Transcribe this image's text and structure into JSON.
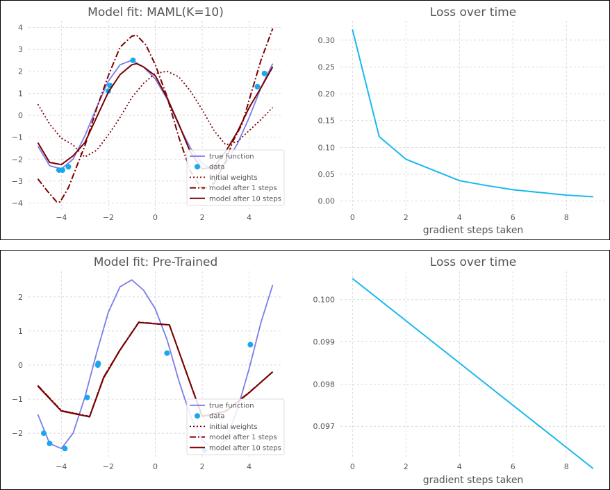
{
  "figures": [
    {
      "left_title": "Model fit: MAML(K=10)",
      "right_title": "Loss over time",
      "right_xlabel": "gradient steps taken"
    },
    {
      "left_title": "Model fit: Pre-Trained",
      "right_title": "Loss over time",
      "right_xlabel": "gradient steps taken"
    }
  ],
  "colors": {
    "true_function": "#7b7bea",
    "data": "#1aa7ec",
    "model": "#7a0000",
    "loss": "#18b8f0"
  },
  "chart_data": [
    {
      "type": "line",
      "title": "Model fit: MAML(K=10)",
      "xlabel": "",
      "ylabel": "",
      "xlim": [
        -5.4,
        5.4
      ],
      "ylim": [
        -4.3,
        4.3
      ],
      "xticks": [
        -4,
        -2,
        0,
        2,
        4
      ],
      "yticks": [
        -4,
        -3,
        -2,
        -1,
        0,
        1,
        2,
        3,
        4
      ],
      "grid": true,
      "legend_position": "lower-right",
      "series": [
        {
          "name": "true function",
          "style": "solid-blue",
          "x": [
            -5.0,
            -4.5,
            -4.0,
            -3.5,
            -3.0,
            -2.5,
            -2.0,
            -1.5,
            -1.0,
            -0.5,
            0.0,
            0.5,
            1.0,
            1.5,
            2.0,
            2.5,
            3.0,
            3.5,
            4.0,
            4.5,
            5.0
          ],
          "y": [
            -1.4,
            -2.3,
            -2.45,
            -2.0,
            -0.95,
            0.35,
            1.55,
            2.3,
            2.5,
            2.2,
            1.65,
            0.75,
            -0.45,
            -1.5,
            -2.2,
            -2.5,
            -2.2,
            -1.3,
            -0.1,
            1.25,
            2.35
          ]
        },
        {
          "name": "data",
          "style": "points",
          "x": [
            -4.1,
            -3.95,
            -3.7,
            -2.0,
            -1.93,
            -0.95,
            4.35,
            4.65
          ],
          "y": [
            -2.5,
            -2.5,
            -2.35,
            1.1,
            1.35,
            2.5,
            1.3,
            1.9
          ]
        },
        {
          "name": "initial weights",
          "style": "dotted",
          "x": [
            -5.0,
            -4.5,
            -4.0,
            -3.5,
            -3.2,
            -3.0,
            -2.5,
            -2.0,
            -1.5,
            -1.0,
            -0.5,
            0.0,
            0.5,
            1.0,
            1.5,
            2.0,
            2.5,
            3.0,
            3.5,
            4.0,
            4.5,
            5.0
          ],
          "y": [
            0.5,
            -0.4,
            -1.05,
            -1.35,
            -1.7,
            -1.9,
            -1.6,
            -0.9,
            -0.1,
            0.8,
            1.45,
            1.9,
            2.0,
            1.75,
            1.1,
            0.25,
            -0.7,
            -1.35,
            -1.2,
            -0.7,
            -0.2,
            0.35
          ]
        },
        {
          "name": "model after 1 steps",
          "style": "dashdot",
          "x": [
            -5.0,
            -4.6,
            -4.2,
            -4.05,
            -3.7,
            -3.3,
            -3.0,
            -2.5,
            -2.0,
            -1.5,
            -1.0,
            -0.8,
            -0.4,
            0.0,
            0.5,
            1.0,
            1.5,
            2.0,
            2.5,
            3.0,
            3.3,
            3.7,
            4.0,
            4.5,
            5.0
          ],
          "y": [
            -2.9,
            -3.45,
            -3.95,
            -3.95,
            -3.3,
            -2.2,
            -1.4,
            0.3,
            1.8,
            3.1,
            3.6,
            3.65,
            3.2,
            2.3,
            0.85,
            -1.0,
            -2.55,
            -3.4,
            -3.1,
            -2.1,
            -1.2,
            -0.4,
            0.7,
            2.5,
            3.95
          ]
        },
        {
          "name": "model after 10 steps",
          "style": "solid-red",
          "x": [
            -5.0,
            -4.5,
            -4.0,
            -3.5,
            -3.0,
            -2.5,
            -2.0,
            -1.5,
            -1.0,
            -0.8,
            -0.5,
            0.0,
            0.5,
            1.0,
            1.5,
            2.0,
            2.5,
            3.0,
            3.5,
            4.0,
            4.5,
            5.0
          ],
          "y": [
            -1.25,
            -2.15,
            -2.25,
            -1.85,
            -1.25,
            -0.1,
            1.05,
            1.85,
            2.3,
            2.35,
            2.2,
            1.8,
            0.8,
            -0.4,
            -1.7,
            -2.45,
            -2.35,
            -1.65,
            -0.75,
            0.35,
            1.25,
            2.2
          ]
        }
      ]
    },
    {
      "type": "line",
      "title": "Loss over time",
      "xlabel": "gradient steps taken",
      "ylabel": "",
      "xlim": [
        -0.45,
        9.45
      ],
      "ylim": [
        -0.016,
        0.336
      ],
      "xticks": [
        0,
        2,
        4,
        6,
        8
      ],
      "yticks": [
        0.0,
        0.05,
        0.1,
        0.15,
        0.2,
        0.25,
        0.3
      ],
      "ytick_labels": [
        "0.00",
        "0.05",
        "0.10",
        "0.15",
        "0.20",
        "0.25",
        "0.30"
      ],
      "grid": true,
      "series": [
        {
          "x": [
            0,
            1,
            2,
            3,
            4,
            5,
            6,
            7,
            8,
            9
          ],
          "y": [
            0.32,
            0.12,
            0.078,
            0.058,
            0.038,
            0.029,
            0.021,
            0.016,
            0.011,
            0.008
          ]
        }
      ]
    },
    {
      "type": "line",
      "title": "Model fit: Pre-Trained",
      "xlabel": "",
      "ylabel": "",
      "xlim": [
        -5.4,
        5.4
      ],
      "ylim": [
        -2.75,
        2.75
      ],
      "xticks": [
        -4,
        -2,
        0,
        2,
        4
      ],
      "yticks": [
        -2,
        -1,
        0,
        1,
        2
      ],
      "grid": true,
      "legend_position": "lower-right",
      "series": [
        {
          "name": "true function",
          "style": "solid-blue",
          "x": [
            -5.0,
            -4.5,
            -4.0,
            -3.5,
            -3.0,
            -2.5,
            -2.0,
            -1.5,
            -1.0,
            -0.5,
            0.0,
            0.5,
            1.0,
            1.5,
            2.0,
            2.5,
            3.0,
            3.5,
            4.0,
            4.5,
            5.0
          ],
          "y": [
            -1.45,
            -2.3,
            -2.45,
            -2.0,
            -0.95,
            0.35,
            1.55,
            2.3,
            2.5,
            2.2,
            1.65,
            0.75,
            -0.45,
            -1.5,
            -2.2,
            -2.5,
            -2.2,
            -1.3,
            -0.1,
            1.25,
            2.35
          ]
        },
        {
          "name": "data",
          "style": "points",
          "x": [
            -4.75,
            -4.5,
            -3.85,
            -2.9,
            -2.45,
            -2.43,
            0.5,
            2.1,
            4.05
          ],
          "y": [
            -2.0,
            -2.3,
            -2.45,
            -0.95,
            0.0,
            0.05,
            0.35,
            -2.5,
            0.6
          ]
        },
        {
          "name": "initial weights",
          "style": "dotted",
          "x": [
            -5.0,
            -4.0,
            -2.8,
            -2.2,
            -1.5,
            -0.7,
            0.6,
            1.5,
            2.0,
            3.0,
            4.0,
            5.0
          ],
          "y": [
            -0.6,
            -1.33,
            -1.5,
            -0.35,
            0.45,
            1.25,
            1.18,
            -0.55,
            -1.5,
            -1.35,
            -0.8,
            -0.2
          ]
        },
        {
          "name": "model after 1 steps",
          "style": "dashdot",
          "x": [
            -5.0,
            -4.0,
            -2.8,
            -2.2,
            -1.5,
            -0.7,
            0.6,
            1.5,
            2.0,
            3.0,
            4.0,
            5.0
          ],
          "y": [
            -0.6,
            -1.34,
            -1.51,
            -0.36,
            0.45,
            1.26,
            1.18,
            -0.55,
            -1.5,
            -1.35,
            -0.8,
            -0.2
          ]
        },
        {
          "name": "model after 10 steps",
          "style": "solid-red",
          "x": [
            -5.0,
            -4.0,
            -2.8,
            -2.2,
            -1.5,
            -0.7,
            0.6,
            1.5,
            2.0,
            3.0,
            4.0,
            5.0
          ],
          "y": [
            -0.62,
            -1.35,
            -1.52,
            -0.38,
            0.44,
            1.25,
            1.18,
            -0.56,
            -1.51,
            -1.36,
            -0.81,
            -0.2
          ]
        }
      ]
    },
    {
      "type": "line",
      "title": "Loss over time",
      "xlabel": "gradient steps taken",
      "ylabel": "",
      "xlim": [
        -0.45,
        9.45
      ],
      "ylim": [
        0.09623,
        0.10067
      ],
      "xticks": [
        0,
        2,
        4,
        6,
        8
      ],
      "yticks": [
        0.097,
        0.098,
        0.099,
        0.1
      ],
      "ytick_labels": [
        "0.097",
        "0.098",
        "0.099",
        "0.100"
      ],
      "grid": true,
      "series": [
        {
          "x": [
            0,
            1,
            2,
            3,
            4,
            5,
            6,
            7,
            8,
            9
          ],
          "y": [
            0.1005,
            0.1,
            0.0995,
            0.099,
            0.0985,
            0.098,
            0.0975,
            0.097,
            0.0965,
            0.096
          ]
        }
      ]
    }
  ]
}
